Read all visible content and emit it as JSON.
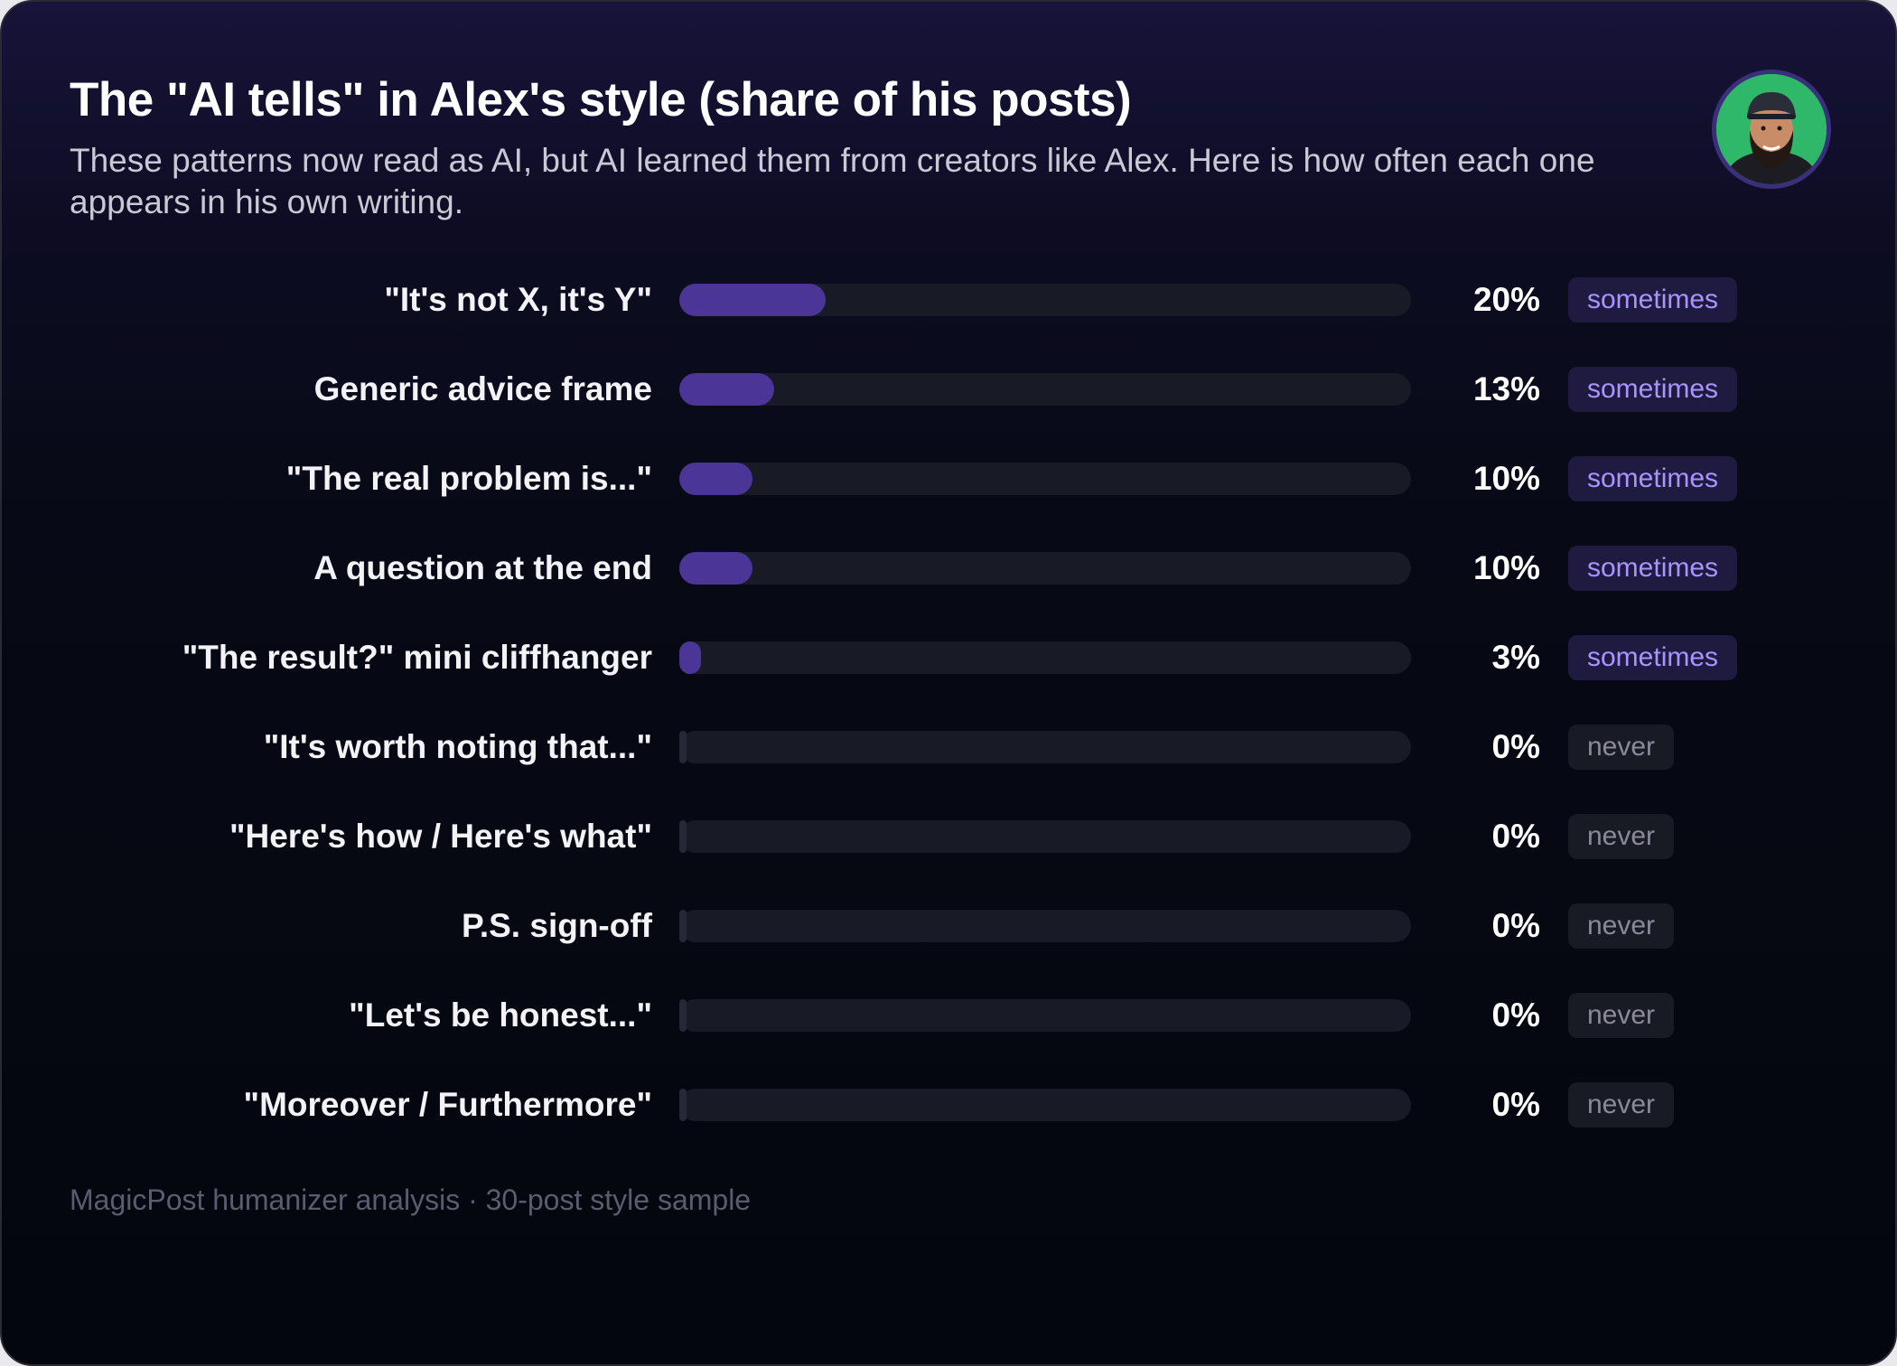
{
  "header": {
    "title": "The \"AI tells\" in Alex's style (share of his posts)",
    "subtitle": "These patterns now read as AI, but AI learned them from creators like Alex. Here is how often each one appears in his own writing."
  },
  "avatar": {
    "icon": "profile-photo",
    "alt": "Alex"
  },
  "colors": {
    "bar_fill": "#4b3596",
    "bar_track": "#181a25",
    "badge_sometimes_text": "#a993ff",
    "badge_never_text": "#8a8a98",
    "avatar_bg": "#2fb86a"
  },
  "chart_data": {
    "type": "bar",
    "orientation": "horizontal",
    "title": "The \"AI tells\" in Alex's style (share of his posts)",
    "xlim": [
      0,
      100
    ],
    "unit": "%",
    "categories": [
      "\"It's not X, it's Y\"",
      "Generic advice frame",
      "\"The real problem is...\"",
      "A question at the end",
      "\"The result?\" mini cliffhanger",
      "\"It's worth noting that...\"",
      "\"Here's how / Here's what\"",
      "P.S. sign-off",
      "\"Let's be honest...\"",
      "\"Moreover / Furthermore\""
    ],
    "values": [
      20,
      13,
      10,
      10,
      3,
      0,
      0,
      0,
      0,
      0
    ],
    "value_labels": [
      "20%",
      "13%",
      "10%",
      "10%",
      "3%",
      "0%",
      "0%",
      "0%",
      "0%",
      "0%"
    ],
    "frequency_badges": [
      "sometimes",
      "sometimes",
      "sometimes",
      "sometimes",
      "sometimes",
      "never",
      "never",
      "never",
      "never",
      "never"
    ]
  },
  "footer": {
    "note": "MagicPost humanizer analysis · 30-post style sample"
  }
}
